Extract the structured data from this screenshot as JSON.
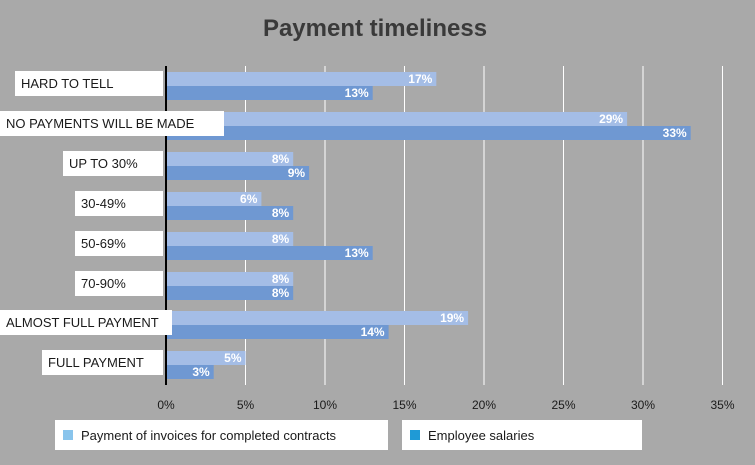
{
  "chart_data": {
    "type": "bar",
    "orientation": "horizontal",
    "title": "Payment timeliness",
    "categories": [
      "HARD TO TELL",
      "NO PAYMENTS  WILL BE MADE",
      "UP TO 30%",
      "30-49%",
      "50-69%",
      "70-90%",
      "ALMOST FULL PAYMENT",
      "FULL PAYMENT"
    ],
    "series": [
      {
        "name": "Payment of invoices for completed contracts",
        "values": [
          17,
          29,
          8,
          6,
          8,
          8,
          19,
          5
        ],
        "labels": [
          "17%",
          "29%",
          "8%",
          "6%",
          "8%",
          "8%",
          "19%",
          "5%"
        ],
        "color": "#a4bde6"
      },
      {
        "name": "Employee salaries",
        "values": [
          13,
          33,
          9,
          8,
          13,
          8,
          14,
          3
        ],
        "labels": [
          "13%",
          "33%",
          "9%",
          "8%",
          "13%",
          "8%",
          "14%",
          "3%"
        ],
        "color": "#6f98d2"
      }
    ],
    "xlim": [
      0,
      35
    ],
    "xticks": [
      0,
      5,
      10,
      15,
      20,
      25,
      30,
      35
    ],
    "xtick_labels": [
      "0%",
      "5%",
      "10%",
      "15%",
      "20%",
      "25%",
      "30%",
      "35%"
    ],
    "grid": true,
    "legend_position": "bottom"
  },
  "legend": {
    "swatch_colors": [
      "#89c4ec",
      "#1f9ad6"
    ]
  },
  "colors": {
    "background": "#a9a9a9",
    "grid": "#ffffff",
    "axis": "#000000"
  }
}
